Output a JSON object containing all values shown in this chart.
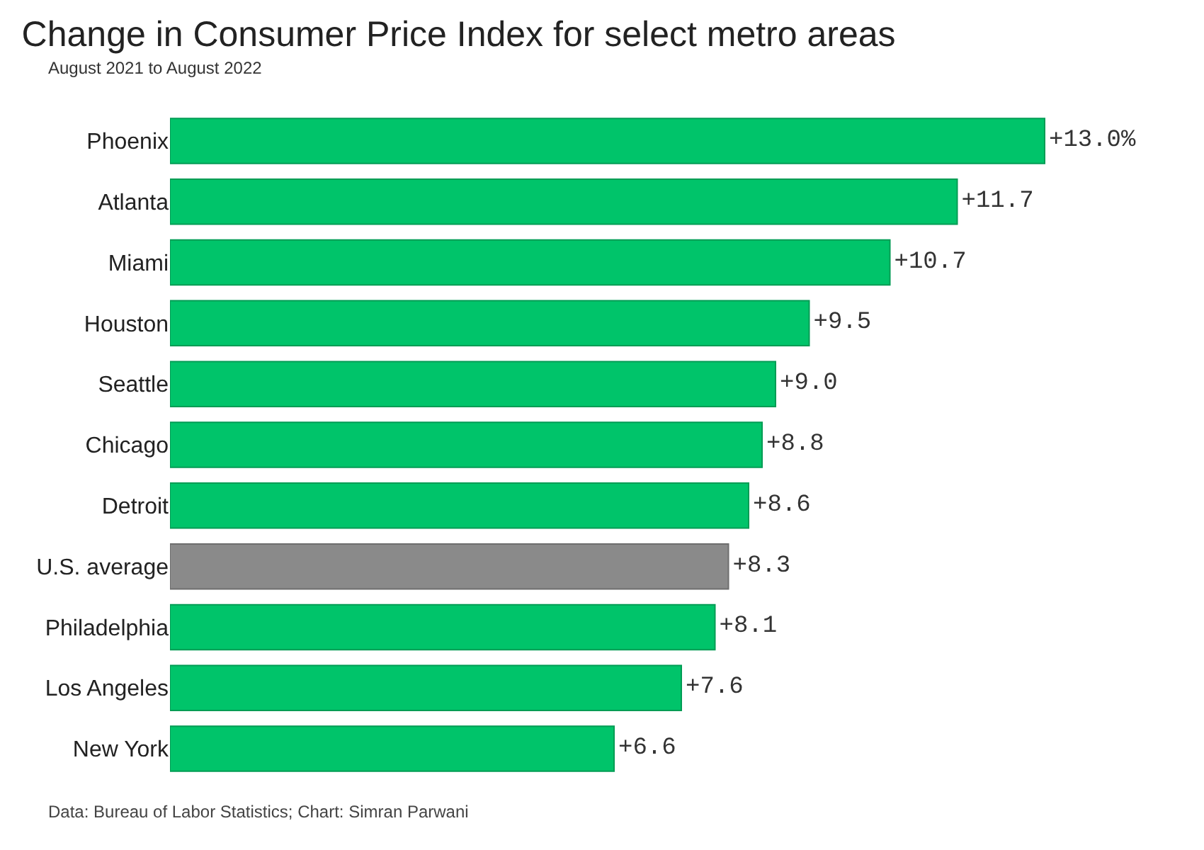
{
  "chart_data": {
    "type": "bar",
    "orientation": "horizontal",
    "title": "Change in Consumer Price Index for select metro areas",
    "subtitle": "August 2021 to August 2022",
    "categories": [
      "Phoenix",
      "Atlanta",
      "Miami",
      "Houston",
      "Seattle",
      "Chicago",
      "Detroit",
      "U.S. average",
      "Philadelphia",
      "Los Angeles",
      "New York"
    ],
    "values": [
      13.0,
      11.7,
      10.7,
      9.5,
      9.0,
      8.8,
      8.6,
      8.3,
      8.1,
      7.6,
      6.6
    ],
    "colors": [
      "#00c46a",
      "#00c46a",
      "#00c46a",
      "#00c46a",
      "#00c46a",
      "#00c46a",
      "#00c46a",
      "#8a8a8a",
      "#00c46a",
      "#00c46a",
      "#00c46a"
    ],
    "value_labels": [
      "+13.0%",
      "+11.7",
      "+10.7",
      "+9.5",
      "+9.0",
      "+8.8",
      "+8.6",
      "+8.3",
      "+8.1",
      "+7.6",
      "+6.6"
    ],
    "tick_labels": "y",
    "annotations": [
      "Data: Bureau of Labor Statistics; Chart: Simran Parwani"
    ]
  }
}
